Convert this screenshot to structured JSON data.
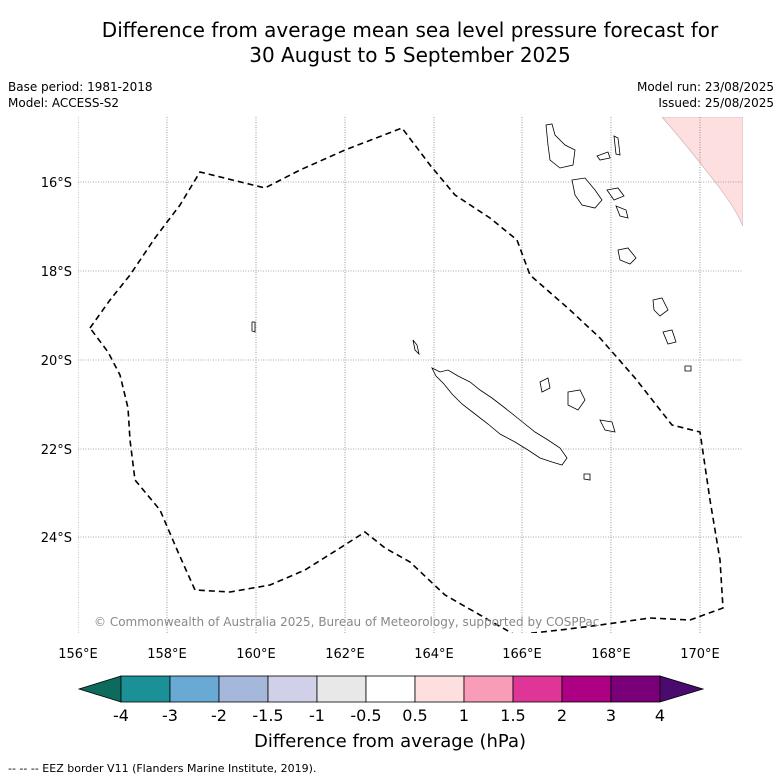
{
  "title_line1": "Difference from average mean sea level pressure forecast for",
  "title_line2": "30 August to 5 September 2025",
  "meta": {
    "base_period": "Base period: 1981-2018",
    "model": "Model: ACCESS-S2",
    "model_run": "Model run: 23/08/2025",
    "issued": "Issued: 25/08/2025"
  },
  "map": {
    "lon_labels": [
      "156°E",
      "158°E",
      "160°E",
      "162°E",
      "164°E",
      "166°E",
      "168°E",
      "170°E"
    ],
    "lat_labels": [
      "16°S",
      "18°S",
      "20°S",
      "22°S",
      "24°S"
    ],
    "copyright": "© Commonwealth of Australia 2025, Bureau of Meteorology, supported by COSPPac"
  },
  "colorbar": {
    "tick_labels": [
      "-4",
      "-3",
      "-2",
      "-1.5",
      "-1",
      "-0.5",
      "0.5",
      "1",
      "1.5",
      "2",
      "3",
      "4"
    ],
    "colors": [
      "#1b9096",
      "#68aad4",
      "#a5b8db",
      "#d0d0e8",
      "#e8e8e8",
      "#ffffff",
      "#fddfdf",
      "#f89cb8",
      "#df3596",
      "#ad0082",
      "#7a0079"
    ],
    "under_color": "#0c6b5c",
    "over_color": "#4a0a6e",
    "label": "Difference from average (hPa)"
  },
  "footnote": "-- -- -- EEZ border V11 (Flanders Marine Institute, 2019)."
}
